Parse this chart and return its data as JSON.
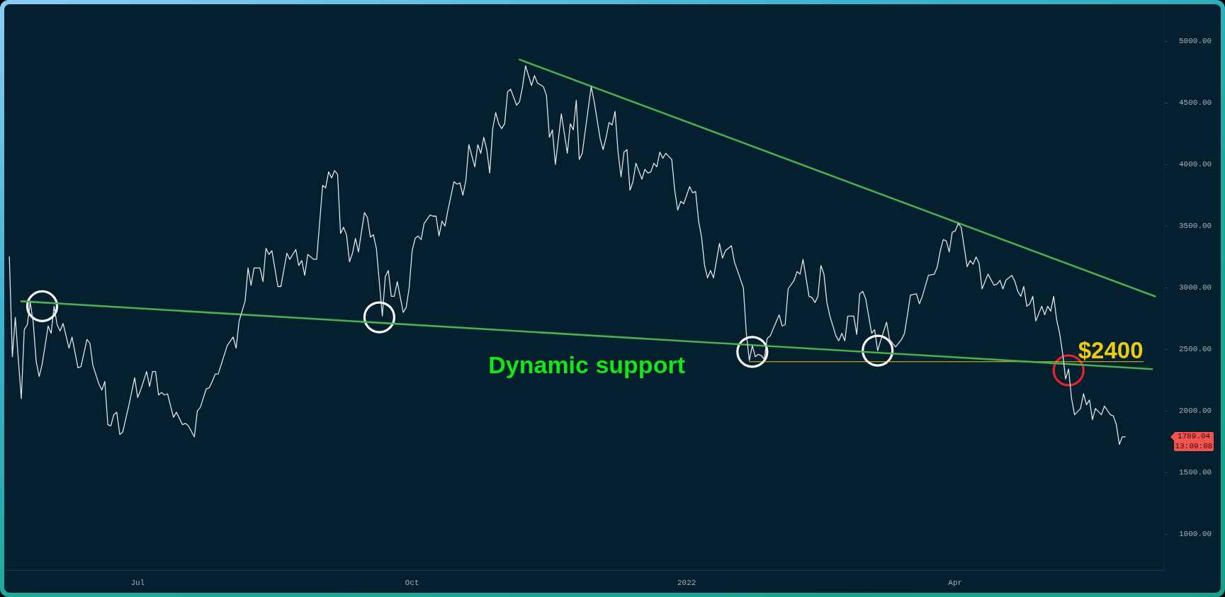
{
  "chart_data": {
    "type": "line",
    "xlim": [
      "2021-05-18",
      "2022-06-10"
    ],
    "xticks": [
      {
        "value": "2021-07-01",
        "label": "Jul"
      },
      {
        "value": "2021-10-01",
        "label": "Oct"
      },
      {
        "value": "2022-01-01",
        "label": "2022"
      },
      {
        "value": "2022-04-01",
        "label": "Apr"
      }
    ],
    "ylim": [
      710,
      5270
    ],
    "yticks": [
      {
        "value": 1000,
        "label": "1000.00"
      },
      {
        "value": 1500,
        "label": "1500.00"
      },
      {
        "value": 2000,
        "label": "2000.00"
      },
      {
        "value": 2500,
        "label": "2500.00"
      },
      {
        "value": 3000,
        "label": "3000.00"
      },
      {
        "value": 3500,
        "label": "3500.00"
      },
      {
        "value": 4000,
        "label": "4000.00"
      },
      {
        "value": 4500,
        "label": "4500.00"
      },
      {
        "value": 5000,
        "label": "5000.00"
      }
    ],
    "annotations": [
      "1789.04",
      "13:09:08"
    ],
    "series": [
      {
        "color": "#dfe6ea",
        "x": [
          "2021-05-19",
          "2021-05-20",
          "2021-05-21",
          "2021-05-22",
          "2021-05-23",
          "2021-05-24",
          "2021-05-25",
          "2021-05-26",
          "2021-05-27",
          "2021-05-28",
          "2021-05-29",
          "2021-05-30",
          "2021-06-01",
          "2021-06-02",
          "2021-06-03",
          "2021-06-04",
          "2021-06-05",
          "2021-06-06",
          "2021-06-08",
          "2021-06-09",
          "2021-06-11",
          "2021-06-12",
          "2021-06-14",
          "2021-06-15",
          "2021-06-16",
          "2021-06-18",
          "2021-06-19",
          "2021-06-20",
          "2021-06-21",
          "2021-06-22",
          "2021-06-23",
          "2021-06-24",
          "2021-06-25",
          "2021-06-26",
          "2021-06-28",
          "2021-06-30",
          "2021-07-01",
          "2021-07-02",
          "2021-07-04",
          "2021-07-05",
          "2021-07-06",
          "2021-07-07",
          "2021-07-08",
          "2021-07-09",
          "2021-07-10",
          "2021-07-11",
          "2021-07-13",
          "2021-07-14",
          "2021-07-16",
          "2021-07-17",
          "2021-07-18",
          "2021-07-20",
          "2021-07-21",
          "2021-07-22",
          "2021-07-24",
          "2021-07-25",
          "2021-07-26",
          "2021-07-27",
          "2021-07-28",
          "2021-07-31",
          "2021-08-02",
          "2021-08-03",
          "2021-08-04",
          "2021-08-06",
          "2021-08-07",
          "2021-08-08",
          "2021-08-09",
          "2021-08-11",
          "2021-08-12",
          "2021-08-13",
          "2021-08-14",
          "2021-08-15",
          "2021-08-17",
          "2021-08-18",
          "2021-08-20",
          "2021-08-21",
          "2021-08-23",
          "2021-08-24",
          "2021-08-25",
          "2021-08-26",
          "2021-08-27",
          "2021-08-29",
          "2021-08-30",
          "2021-09-01",
          "2021-09-02",
          "2021-09-03",
          "2021-09-04",
          "2021-09-05",
          "2021-09-06",
          "2021-09-07",
          "2021-09-08",
          "2021-09-09",
          "2021-09-10",
          "2021-09-11",
          "2021-09-12",
          "2021-09-13",
          "2021-09-15",
          "2021-09-16",
          "2021-09-17",
          "2021-09-18",
          "2021-09-19",
          "2021-09-21",
          "2021-09-22",
          "2021-09-23",
          "2021-09-24",
          "2021-09-25",
          "2021-09-26",
          "2021-09-28",
          "2021-09-29",
          "2021-09-30",
          "2021-10-01",
          "2021-10-02",
          "2021-10-03",
          "2021-10-04",
          "2021-10-05",
          "2021-10-07",
          "2021-10-08",
          "2021-10-09",
          "2021-10-10",
          "2021-10-11",
          "2021-10-12",
          "2021-10-13",
          "2021-10-15",
          "2021-10-16",
          "2021-10-17",
          "2021-10-18",
          "2021-10-19",
          "2021-10-20",
          "2021-10-22",
          "2021-10-23",
          "2021-10-24",
          "2021-10-25",
          "2021-10-26",
          "2021-10-27",
          "2021-10-28",
          "2021-10-29",
          "2021-10-30",
          "2021-10-31",
          "2021-11-01",
          "2021-11-02",
          "2021-11-03",
          "2021-11-05",
          "2021-11-06",
          "2021-11-07",
          "2021-11-08",
          "2021-11-10",
          "2021-11-11",
          "2021-11-12",
          "2021-11-14",
          "2021-11-15",
          "2021-11-16",
          "2021-11-17",
          "2021-11-18",
          "2021-11-20",
          "2021-11-22",
          "2021-11-23",
          "2021-11-24",
          "2021-11-25",
          "2021-11-26",
          "2021-11-27",
          "2021-11-30",
          "2021-12-01",
          "2021-12-03",
          "2021-12-04",
          "2021-12-05",
          "2021-12-06",
          "2021-12-07",
          "2021-12-08",
          "2021-12-09",
          "2021-12-10",
          "2021-12-11",
          "2021-12-12",
          "2021-12-13",
          "2021-12-14",
          "2021-12-15",
          "2021-12-17",
          "2021-12-18",
          "2021-12-19",
          "2021-12-20",
          "2021-12-21",
          "2021-12-22",
          "2021-12-23",
          "2021-12-24",
          "2021-12-25",
          "2021-12-27",
          "2021-12-28",
          "2021-12-29",
          "2021-12-30",
          "2021-12-31",
          "2022-01-02",
          "2022-01-03",
          "2022-01-04",
          "2022-01-05",
          "2022-01-06",
          "2022-01-07",
          "2022-01-08",
          "2022-01-09",
          "2022-01-10",
          "2022-01-12",
          "2022-01-13",
          "2022-01-14",
          "2022-01-16",
          "2022-01-17",
          "2022-01-18",
          "2022-01-20",
          "2022-01-21",
          "2022-01-22",
          "2022-01-23",
          "2022-01-24",
          "2022-01-25",
          "2022-01-26",
          "2022-01-27",
          "2022-01-28",
          "2022-01-29",
          "2022-02-01",
          "2022-02-02",
          "2022-02-03",
          "2022-02-04",
          "2022-02-06",
          "2022-02-07",
          "2022-02-08",
          "2022-02-09",
          "2022-02-11",
          "2022-02-12",
          "2022-02-13",
          "2022-02-14",
          "2022-02-15",
          "2022-02-16",
          "2022-02-17",
          "2022-02-18",
          "2022-02-20",
          "2022-02-21",
          "2022-02-22",
          "2022-02-23",
          "2022-02-24",
          "2022-02-26",
          "2022-02-27",
          "2022-02-28",
          "2022-03-01",
          "2022-03-02",
          "2022-03-04",
          "2022-03-05",
          "2022-03-06",
          "2022-03-07",
          "2022-03-09",
          "2022-03-10",
          "2022-03-11",
          "2022-03-12",
          "2022-03-14",
          "2022-03-15",
          "2022-03-16",
          "2022-03-17",
          "2022-03-19",
          "2022-03-20",
          "2022-03-21",
          "2022-03-23",
          "2022-03-25",
          "2022-03-26",
          "2022-03-27",
          "2022-03-28",
          "2022-03-29",
          "2022-03-30",
          "2022-03-31",
          "2022-04-01",
          "2022-04-02",
          "2022-04-03",
          "2022-04-05",
          "2022-04-06",
          "2022-04-07",
          "2022-04-08",
          "2022-04-09",
          "2022-04-10",
          "2022-04-12",
          "2022-04-14",
          "2022-04-15",
          "2022-04-16",
          "2022-04-17",
          "2022-04-18",
          "2022-04-20",
          "2022-04-21",
          "2022-04-22",
          "2022-04-23",
          "2022-04-24",
          "2022-04-25",
          "2022-04-26",
          "2022-04-27",
          "2022-04-28",
          "2022-04-30",
          "2022-05-01",
          "2022-05-02",
          "2022-05-03",
          "2022-05-04",
          "2022-05-05",
          "2022-05-06",
          "2022-05-07",
          "2022-05-08",
          "2022-05-09",
          "2022-05-10",
          "2022-05-11",
          "2022-05-13",
          "2022-05-14",
          "2022-05-15",
          "2022-05-16",
          "2022-05-17",
          "2022-05-18",
          "2022-05-20",
          "2022-05-21",
          "2022-05-23",
          "2022-05-24",
          "2022-05-25",
          "2022-05-26",
          "2022-05-27",
          "2022-05-28"
        ],
        "values": [
          3250,
          2440,
          2760,
          2420,
          2100,
          2660,
          2700,
          2880,
          2720,
          2400,
          2280,
          2380,
          2690,
          2630,
          2850,
          2700,
          2650,
          2710,
          2510,
          2600,
          2350,
          2360,
          2580,
          2550,
          2370,
          2220,
          2170,
          2240,
          1890,
          1880,
          1970,
          1990,
          1810,
          1830,
          2040,
          2270,
          2110,
          2170,
          2320,
          2200,
          2320,
          2320,
          2130,
          2150,
          2130,
          2140,
          1950,
          1990,
          1890,
          1900,
          1880,
          1790,
          2000,
          2030,
          2180,
          2190,
          2240,
          2300,
          2300,
          2530,
          2600,
          2510,
          2730,
          2890,
          3160,
          3020,
          3160,
          3160,
          3050,
          3320,
          3270,
          3300,
          3010,
          3010,
          3280,
          3230,
          3310,
          3180,
          3220,
          3100,
          3270,
          3230,
          3230,
          3830,
          3810,
          3940,
          3890,
          3950,
          3920,
          3440,
          3490,
          3430,
          3210,
          3280,
          3400,
          3290,
          3610,
          3570,
          3410,
          3430,
          3320,
          2770,
          3090,
          3140,
          2930,
          2930,
          3050,
          2800,
          2840,
          3000,
          3300,
          3400,
          3420,
          3390,
          3520,
          3590,
          3580,
          3580,
          3420,
          3540,
          3500,
          3630,
          3860,
          3840,
          3850,
          3750,
          3870,
          4160,
          3980,
          4160,
          4090,
          4220,
          4120,
          3930,
          4290,
          4420,
          4330,
          4290,
          4330,
          4590,
          4610,
          4480,
          4510,
          4630,
          4800,
          4640,
          4720,
          4660,
          4630,
          4560,
          4220,
          4280,
          4000,
          4410,
          4090,
          4330,
          4280,
          4520,
          4040,
          4090,
          4630,
          4510,
          4210,
          4120,
          4220,
          4340,
          4320,
          4430,
          4100,
          3900,
          4100,
          4120,
          3790,
          3860,
          4010,
          3880,
          3960,
          3930,
          3940,
          4010,
          3980,
          4100,
          4050,
          4090,
          4040,
          3790,
          3630,
          3700,
          3680,
          3820,
          3770,
          3780,
          3540,
          3410,
          3180,
          3080,
          3140,
          3080,
          3360,
          3240,
          3300,
          3340,
          3210,
          3140,
          3000,
          2630,
          2410,
          2530,
          2440,
          2460,
          2450,
          2420,
          2590,
          2610,
          2780,
          2690,
          2700,
          2990,
          3060,
          3130,
          3110,
          3230,
          2930,
          2920,
          2880,
          2930,
          3180,
          3110,
          2880,
          2770,
          2610,
          2570,
          2630,
          2570,
          2770,
          2770,
          2620,
          2950,
          2970,
          2910,
          2630,
          2660,
          2490,
          2570,
          2720,
          2580,
          2550,
          2520,
          2580,
          2630,
          2780,
          2940,
          2950,
          2870,
          2930,
          3100,
          3110,
          3170,
          3300,
          3390,
          3380,
          3290,
          3450,
          3460,
          3520,
          3490,
          3170,
          3220,
          3190,
          3250,
          3200,
          2990,
          3110,
          3020,
          3030,
          3060,
          2990,
          3060,
          3100,
          3050,
          2970,
          2930,
          3010,
          2850,
          2870,
          2930,
          2730,
          2850,
          2780,
          2850,
          2810,
          2930,
          2740,
          2630,
          2470,
          2260,
          2340,
          2100,
          1970,
          2020,
          2140,
          2050,
          2090,
          1930,
          2020,
          1970,
          2040,
          1970,
          1960,
          1890,
          1730,
          1790,
          1790
        ]
      },
      {
        "type": "line",
        "name": "Dynamic support",
        "color": "#4caf50",
        "x": [
          "2021-05-23",
          "2022-06-06"
        ],
        "values": [
          2890,
          2340
        ]
      },
      {
        "type": "line",
        "color": "#4caf50",
        "x": [
          "2021-11-06",
          "2022-06-07"
        ],
        "values": [
          4850,
          2930
        ]
      },
      {
        "type": "line",
        "name": "$2400",
        "color": "#e6c619",
        "x": [
          "2022-01-22",
          "2022-06-03"
        ],
        "values": [
          2400,
          2400
        ]
      },
      {
        "type": "scatter",
        "marker": "circle",
        "color": "#ffffff",
        "x": [
          "2021-05-30",
          "2021-09-20",
          "2022-01-23",
          "2022-03-06"
        ],
        "values": [
          2850,
          2760,
          2480,
          2490
        ]
      },
      {
        "type": "scatter",
        "marker": "circle",
        "color": "#e3262a",
        "x": [
          "2022-05-09"
        ],
        "values": [
          2330
        ]
      }
    ]
  }
}
